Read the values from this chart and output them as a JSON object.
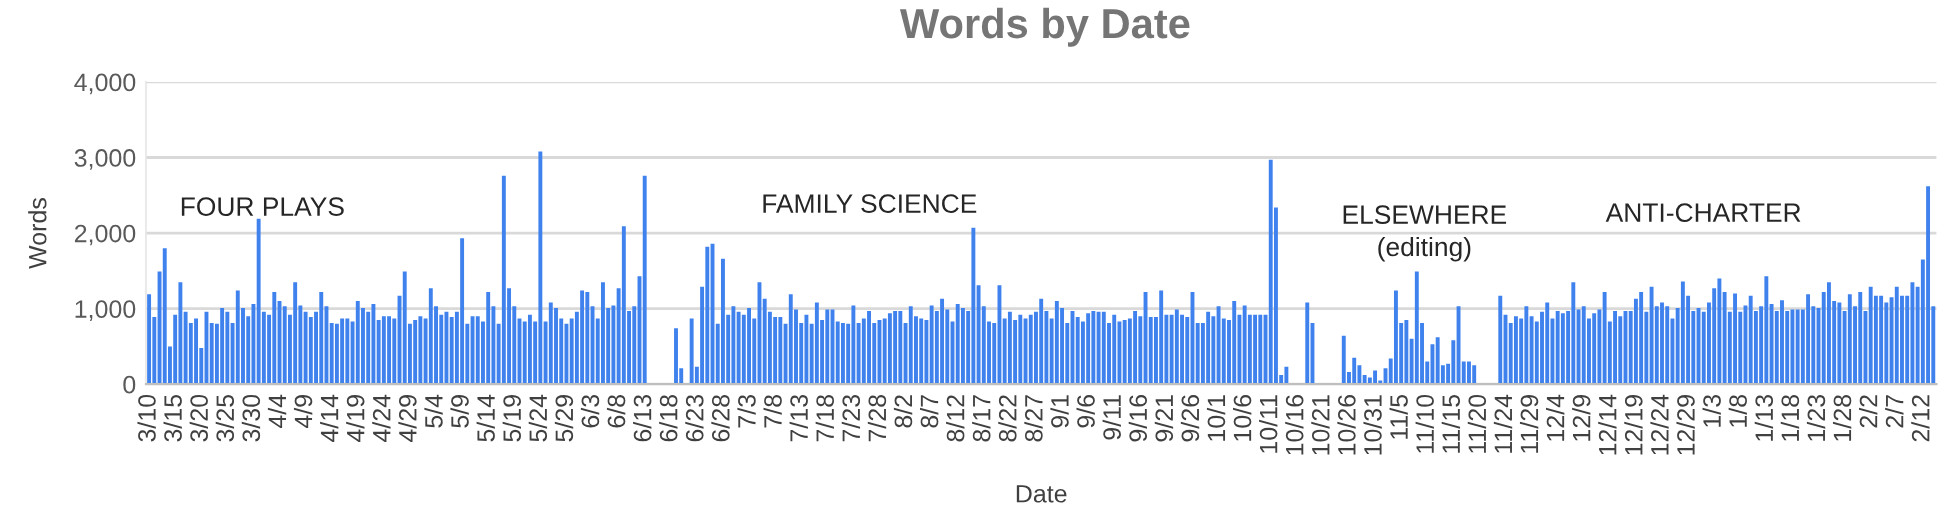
{
  "chart_data": {
    "type": "bar",
    "title": "Words by Date",
    "xlabel": "Date",
    "ylabel": "Words",
    "color": "#3f82ee",
    "annotations": [
      "FOUR PLAYS",
      "FAMILY SCIENCE",
      "ELSEWHERE\n(editing)",
      "ANTI-CHARTER"
    ],
    "ylim": [
      0,
      4000
    ],
    "yticks": [
      0,
      {
        "value": 1000,
        "label": "1,000"
      },
      {
        "value": 2000,
        "label": "2,000"
      },
      {
        "value": 3000,
        "label": "3,000"
      },
      {
        "value": 4000,
        "label": "4,000"
      }
    ],
    "grid": "y",
    "legend": false,
    "categories": [
      "3/10",
      null,
      null,
      null,
      null,
      "3/15",
      null,
      null,
      null,
      null,
      "3/20",
      null,
      null,
      null,
      null,
      "3/25",
      null,
      null,
      null,
      null,
      "3/30",
      null,
      null,
      null,
      null,
      "4/4",
      null,
      null,
      null,
      null,
      "4/9",
      null,
      null,
      null,
      null,
      "4/14",
      null,
      null,
      null,
      null,
      "4/19",
      null,
      null,
      null,
      null,
      "4/24",
      null,
      null,
      null,
      null,
      "4/29",
      null,
      null,
      null,
      null,
      "5/4",
      null,
      null,
      null,
      null,
      "5/9",
      null,
      null,
      null,
      null,
      "5/14",
      null,
      null,
      null,
      null,
      "5/19",
      null,
      null,
      null,
      null,
      "5/24",
      null,
      null,
      null,
      null,
      "5/29",
      null,
      null,
      null,
      null,
      "6/3",
      null,
      null,
      null,
      null,
      "6/8",
      null,
      null,
      null,
      null,
      "6/13",
      null,
      null,
      null,
      null,
      "6/18",
      null,
      null,
      null,
      null,
      "6/23",
      null,
      null,
      null,
      null,
      "6/28",
      null,
      null,
      null,
      null,
      "7/3",
      null,
      null,
      null,
      null,
      "7/8",
      null,
      null,
      null,
      null,
      "7/13",
      null,
      null,
      null,
      null,
      "7/18",
      null,
      null,
      null,
      null,
      "7/23",
      null,
      null,
      null,
      null,
      "7/28",
      null,
      null,
      null,
      null,
      "8/2",
      null,
      null,
      null,
      null,
      "8/7",
      null,
      null,
      null,
      null,
      "8/12",
      null,
      null,
      null,
      null,
      "8/17",
      null,
      null,
      null,
      null,
      "8/22",
      null,
      null,
      null,
      null,
      "8/27",
      null,
      null,
      null,
      null,
      "9/1",
      null,
      null,
      null,
      null,
      "9/6",
      null,
      null,
      null,
      null,
      "9/11",
      null,
      null,
      null,
      null,
      "9/16",
      null,
      null,
      null,
      null,
      "9/21",
      null,
      null,
      null,
      null,
      "9/26",
      null,
      null,
      null,
      null,
      "10/1",
      null,
      null,
      null,
      null,
      "10/6",
      null,
      null,
      null,
      null,
      "10/11",
      null,
      null,
      null,
      null,
      "10/16",
      null,
      null,
      null,
      null,
      "10/21",
      null,
      null,
      null,
      null,
      "10/26",
      null,
      null,
      null,
      null,
      "10/31",
      null,
      null,
      null,
      null,
      "11/5",
      null,
      null,
      null,
      null,
      "11/10",
      null,
      null,
      null,
      null,
      "11/15",
      null,
      null,
      null,
      null,
      "11/20",
      null,
      null,
      null,
      null,
      "11/24",
      null,
      null,
      null,
      null,
      "11/29",
      null,
      null,
      null,
      null,
      "12/4",
      null,
      null,
      null,
      null,
      "12/9",
      null,
      null,
      null,
      null,
      "12/14",
      null,
      null,
      null,
      null,
      "12/19",
      null,
      null,
      null,
      null,
      "12/24",
      null,
      null,
      null,
      null,
      "12/29",
      null,
      null,
      null,
      null,
      "1/3",
      null,
      null,
      null,
      null,
      "1/8",
      null,
      null,
      null,
      null,
      "1/13",
      null,
      null,
      null,
      null,
      "1/18",
      null,
      null,
      null,
      null,
      "1/23",
      null,
      null,
      null,
      null,
      "1/28",
      null,
      null,
      null,
      null,
      "2/2",
      null,
      null,
      null,
      null,
      "2/7",
      null,
      null,
      null,
      null,
      "2/12",
      null,
      null
    ],
    "values": [
      1190,
      890,
      1490,
      1800,
      500,
      920,
      1350,
      960,
      810,
      870,
      480,
      960,
      810,
      800,
      1010,
      960,
      810,
      1240,
      1010,
      900,
      1060,
      2190,
      960,
      920,
      1220,
      1100,
      1030,
      920,
      1350,
      1040,
      960,
      890,
      960,
      1220,
      1030,
      810,
      800,
      870,
      870,
      830,
      1100,
      1010,
      960,
      1060,
      850,
      900,
      900,
      870,
      1170,
      1490,
      800,
      850,
      900,
      870,
      1270,
      1030,
      920,
      960,
      890,
      960,
      1930,
      800,
      900,
      900,
      830,
      1220,
      1030,
      800,
      2760,
      1270,
      1030,
      870,
      830,
      920,
      830,
      3080,
      830,
      1080,
      1010,
      870,
      800,
      870,
      960,
      1240,
      1220,
      1030,
      870,
      1350,
      1010,
      1040,
      1270,
      2090,
      970,
      1030,
      1430,
      2760,
      0,
      0,
      0,
      0,
      0,
      740,
      210,
      0,
      870,
      230,
      1290,
      1820,
      1860,
      800,
      1660,
      920,
      1030,
      960,
      920,
      1010,
      870,
      1350,
      1130,
      960,
      890,
      890,
      800,
      1190,
      990,
      810,
      920,
      800,
      1080,
      850,
      990,
      990,
      830,
      810,
      800,
      1040,
      810,
      870,
      970,
      810,
      850,
      870,
      940,
      970,
      970,
      810,
      1030,
      900,
      870,
      850,
      1040,
      970,
      1130,
      990,
      830,
      1060,
      1010,
      970,
      2070,
      1310,
      1030,
      830,
      810,
      1310,
      870,
      960,
      850,
      920,
      870,
      920,
      960,
      1130,
      970,
      870,
      1100,
      1010,
      810,
      970,
      890,
      830,
      940,
      970,
      960,
      960,
      810,
      920,
      830,
      850,
      870,
      970,
      900,
      1220,
      890,
      890,
      1240,
      920,
      920,
      990,
      920,
      890,
      1220,
      810,
      810,
      960,
      900,
      1030,
      870,
      850,
      1100,
      920,
      1040,
      920,
      920,
      920,
      920,
      2970,
      2340,
      120,
      230,
      0,
      0,
      0,
      1080,
      810,
      0,
      0,
      0,
      0,
      0,
      640,
      160,
      350,
      250,
      120,
      90,
      180,
      50,
      210,
      340,
      1240,
      810,
      850,
      600,
      1490,
      810,
      300,
      530,
      620,
      250,
      270,
      580,
      1030,
      300,
      300,
      250,
      0,
      0,
      0,
      0,
      1170,
      920,
      810,
      900,
      870,
      1030,
      900,
      830,
      960,
      1080,
      870,
      970,
      940,
      970,
      1350,
      990,
      1030,
      870,
      940,
      990,
      1220,
      830,
      970,
      900,
      970,
      970,
      1130,
      1220,
      960,
      1290,
      1030,
      1080,
      1030,
      870,
      1010,
      1360,
      1170,
      970,
      1010,
      960,
      1080,
      1270,
      1400,
      1220,
      960,
      1200,
      960,
      1040,
      1170,
      970,
      1030,
      1430,
      1060,
      970,
      1110,
      970,
      990,
      990,
      990,
      1190,
      1030,
      1010,
      1220,
      1350,
      1100,
      1080,
      970,
      1190,
      1030,
      1220,
      970,
      1290,
      1170,
      1170,
      1080,
      1150,
      1290,
      1170,
      1170,
      1350,
      1290,
      1650,
      2620,
      1030
    ]
  }
}
